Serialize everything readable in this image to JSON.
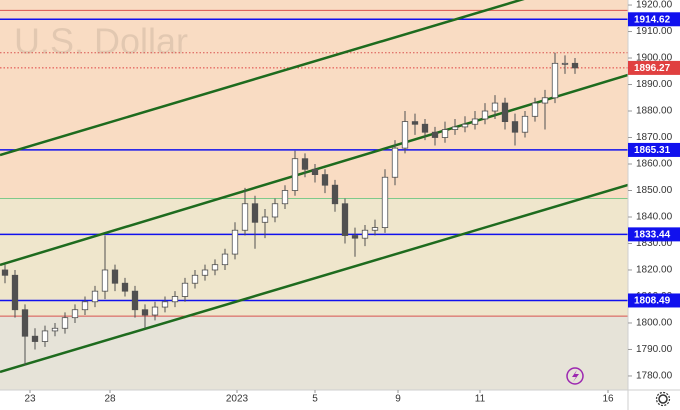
{
  "chart_data": {
    "type": "candlestick",
    "title": "U.S. Dollar",
    "xlim": [
      -0.5,
      62.3
    ],
    "ylim": [
      1774.7,
      1921.9
    ],
    "xticks": [
      {
        "value": 2.5,
        "label": "23"
      },
      {
        "value": 10.5,
        "label": "28"
      },
      {
        "value": 23.2,
        "label": "2023"
      },
      {
        "value": 31,
        "label": "5"
      },
      {
        "value": 39.3,
        "label": "9"
      },
      {
        "value": 47.5,
        "label": "11"
      },
      {
        "value": 60.3,
        "label": "16"
      }
    ],
    "yticks": [
      {
        "value": 1780,
        "label": "1780.00"
      },
      {
        "value": 1790,
        "label": "1790.00"
      },
      {
        "value": 1800,
        "label": "1800.00"
      },
      {
        "value": 1810,
        "label": "1810.00"
      },
      {
        "value": 1820,
        "label": "1820.00"
      },
      {
        "value": 1830,
        "label": "1830.00"
      },
      {
        "value": 1840,
        "label": "1840.00"
      },
      {
        "value": 1850,
        "label": "1850.00"
      },
      {
        "value": 1860,
        "label": "1860.00"
      },
      {
        "value": 1870,
        "label": "1870.00"
      },
      {
        "value": 1880,
        "label": "1880.00"
      },
      {
        "value": 1890,
        "label": "1890.00"
      },
      {
        "value": 1900,
        "label": "1900.00"
      },
      {
        "value": 1910,
        "label": "1910.00"
      },
      {
        "value": 1920,
        "label": "1920.00"
      }
    ],
    "zones": [
      {
        "from": 1847,
        "to": 1921.9,
        "color": "#f9dcc3"
      },
      {
        "from": 1802.6,
        "to": 1847,
        "color": "#efe6cc"
      },
      {
        "from": 1774.7,
        "to": 1802.6,
        "color": "#e6e3d8"
      }
    ],
    "price_lines": [
      {
        "value": 1918,
        "color": "#d9534f",
        "width": 1,
        "dashed": false,
        "labeled": false
      },
      {
        "value": 1902,
        "color": "#d9534f",
        "width": 1,
        "dashed": true,
        "labeled": false
      },
      {
        "value": 1847,
        "color": "#7fc98a",
        "width": 1,
        "dashed": false,
        "labeled": false
      },
      {
        "value": 1802.6,
        "color": "#d9534f",
        "width": 1,
        "dashed": false,
        "labeled": false
      },
      {
        "value": 1914.62,
        "color": "#1111ee",
        "width": 1.5,
        "dashed": false,
        "labeled": true
      },
      {
        "value": 1865.31,
        "color": "#1111ee",
        "width": 1.5,
        "dashed": false,
        "labeled": true
      },
      {
        "value": 1833.44,
        "color": "#1111ee",
        "width": 1.5,
        "dashed": false,
        "labeled": true
      },
      {
        "value": 1808.49,
        "color": "#1111ee",
        "width": 1.5,
        "dashed": false,
        "labeled": true
      },
      {
        "value": 1896.27,
        "color": "#e04040",
        "width": 1,
        "dashed": true,
        "labeled": true
      }
    ],
    "trend_lines": [
      {
        "x": [
          -0.5,
          62.3
        ],
        "y": [
          1863.4,
          1934
        ],
        "color": "#1e6b1e"
      },
      {
        "x": [
          -0.5,
          62.3
        ],
        "y": [
          1821.9,
          1893.6
        ],
        "color": "#1e6b1e"
      },
      {
        "x": [
          -0.5,
          62.3
        ],
        "y": [
          1781.5,
          1852.1
        ],
        "color": "#1e6b1e"
      }
    ],
    "candle_color": "#505050",
    "x": [
      0,
      1,
      2,
      3,
      4,
      5,
      6,
      7,
      8,
      9,
      10,
      11,
      12,
      13,
      14,
      15,
      16,
      17,
      18,
      19,
      20,
      21,
      22,
      23,
      24,
      25,
      26,
      27,
      28,
      29,
      30,
      31,
      32,
      33,
      34,
      35,
      36,
      37,
      38,
      39,
      40,
      41,
      42,
      43,
      44,
      45,
      46,
      47,
      48,
      49,
      50,
      51,
      52,
      53,
      54,
      55,
      56,
      57
    ],
    "open": [
      1820,
      1818,
      1805,
      1795,
      1793,
      1797,
      1798,
      1802,
      1805,
      1808,
      1812,
      1820,
      1815,
      1812,
      1805,
      1803,
      1806,
      1808,
      1810,
      1815,
      1818,
      1820,
      1822,
      1826,
      1835,
      1845,
      1838,
      1840,
      1845,
      1850,
      1862,
      1858,
      1856,
      1852,
      1845,
      1833,
      1832,
      1835,
      1836,
      1855,
      1866,
      1876,
      1875,
      1872,
      1870,
      1873,
      1874,
      1875,
      1877,
      1880,
      1883,
      1876,
      1872,
      1878,
      1883,
      1885,
      1898,
      1898
    ],
    "high": [
      1822,
      1820,
      1807,
      1798,
      1799,
      1800,
      1804,
      1807,
      1810,
      1814,
      1833,
      1822,
      1817,
      1814,
      1807,
      1808,
      1810,
      1812,
      1817,
      1820,
      1822,
      1824,
      1828,
      1838,
      1851,
      1848,
      1843,
      1847,
      1852,
      1865,
      1864,
      1860,
      1858,
      1854,
      1847,
      1836,
      1837,
      1839,
      1858,
      1869,
      1880,
      1879,
      1877,
      1874,
      1876,
      1877,
      1878,
      1880,
      1883,
      1886,
      1885,
      1879,
      1880,
      1885,
      1888,
      1902,
      1901,
      1900
    ],
    "low": [
      1815,
      1802,
      1784,
      1790,
      1791,
      1795,
      1796,
      1800,
      1803,
      1806,
      1809,
      1812,
      1810,
      1802,
      1798,
      1801,
      1804,
      1806,
      1808,
      1813,
      1816,
      1818,
      1820,
      1824,
      1833,
      1828,
      1832,
      1838,
      1843,
      1848,
      1855,
      1853,
      1849,
      1842,
      1830,
      1825,
      1829,
      1833,
      1834,
      1852,
      1864,
      1871,
      1869,
      1867,
      1868,
      1871,
      1872,
      1873,
      1875,
      1877,
      1873,
      1867,
      1870,
      1876,
      1873,
      1883,
      1894,
      1894
    ],
    "close": [
      1818,
      1805,
      1795,
      1793,
      1797,
      1798,
      1802,
      1805,
      1808,
      1812,
      1820,
      1815,
      1812,
      1805,
      1803,
      1806,
      1808,
      1810,
      1815,
      1818,
      1820,
      1822,
      1826,
      1835,
      1845,
      1838,
      1840,
      1845,
      1850,
      1862,
      1858,
      1856,
      1852,
      1845,
      1833,
      1832,
      1835,
      1836,
      1855,
      1866,
      1876,
      1875,
      1872,
      1870,
      1873,
      1874,
      1875,
      1877,
      1880,
      1883,
      1876,
      1872,
      1878,
      1883,
      1885,
      1898,
      1898,
      1896.27
    ]
  }
}
